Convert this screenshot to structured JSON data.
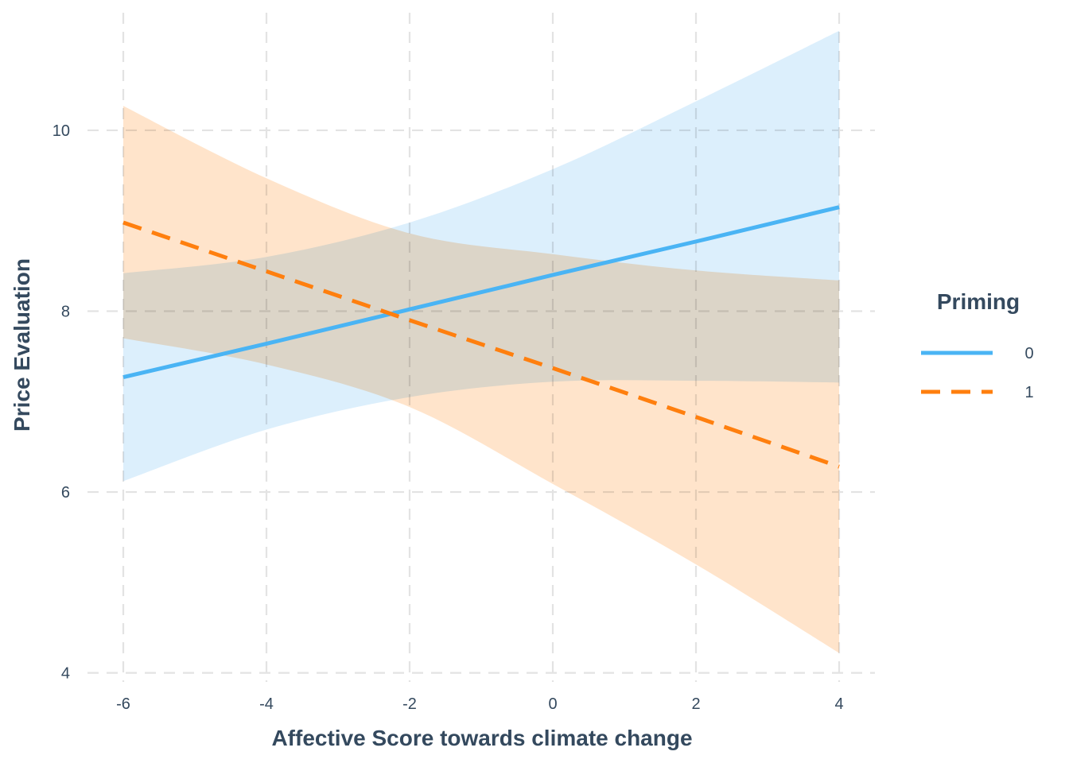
{
  "chart_data": {
    "type": "line",
    "xlabel": "Affective Score towards climate change",
    "ylabel": "Price Evaluation",
    "xlim": [
      -6.5,
      4.5
    ],
    "ylim": [
      3.9,
      11.3
    ],
    "x_ticks": [
      -6,
      -4,
      -2,
      0,
      2,
      4
    ],
    "y_ticks": [
      4,
      6,
      8,
      10
    ],
    "grid": true,
    "legend": {
      "title": "Priming",
      "placement": "right"
    },
    "series": [
      {
        "name": "0",
        "color": "#4ab4f4",
        "ribbon_color": "#d6ecfb",
        "line_style": "solid",
        "x": [
          -6,
          -4,
          -2,
          0,
          2,
          4
        ],
        "y": [
          7.27,
          7.64,
          8.02,
          8.4,
          8.77,
          9.15
        ],
        "lower": [
          6.12,
          6.69,
          7.05,
          7.22,
          7.23,
          7.21
        ],
        "upper": [
          8.42,
          8.6,
          8.98,
          9.57,
          10.32,
          11.1
        ]
      },
      {
        "name": "1",
        "color": "#ff7f0e",
        "ribbon_color": "#ffdfc2",
        "line_style": "dashed",
        "x": [
          -6,
          -4,
          -2,
          0,
          2,
          4
        ],
        "y": [
          8.98,
          8.44,
          7.9,
          7.37,
          6.83,
          6.28
        ],
        "lower": [
          7.7,
          7.41,
          6.94,
          6.09,
          5.2,
          4.22
        ],
        "upper": [
          10.27,
          9.47,
          8.86,
          8.63,
          8.45,
          8.34
        ]
      }
    ]
  }
}
